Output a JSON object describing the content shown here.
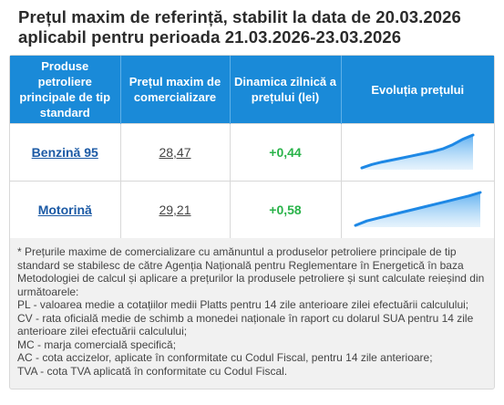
{
  "title_line1": "Prețul maxim de referință, stabilit la data de 20.03.2026",
  "title_line2": "aplicabil pentru perioada 21.03.2026-23.03.2026",
  "table": {
    "headers": [
      "Produse petroliere principale de tip standard",
      "Prețul maxim de comercializare",
      "Dinamica zilnică a prețului (lei)",
      "Evoluția prețului"
    ],
    "rows": [
      {
        "product": "Benzină 95",
        "price": "28,47",
        "delta": "+0,44",
        "trend": [
          0.05,
          0.15,
          0.22,
          0.28,
          0.34,
          0.4,
          0.46,
          0.52,
          0.6,
          0.72,
          0.88,
          1.0
        ]
      },
      {
        "product": "Motorină",
        "price": "29,21",
        "delta": "+0,58",
        "trend": [
          0.05,
          0.18,
          0.26,
          0.34,
          0.42,
          0.5,
          0.58,
          0.66,
          0.74,
          0.82,
          0.9,
          1.0
        ]
      }
    ]
  },
  "colors": {
    "header": "#1a8ad8",
    "accent": "#1c5aa5",
    "positive": "#2ab34a",
    "trend_line": "#1e88e5"
  },
  "notes": [
    "* Prețurile maxime de comercializare cu amănuntul a produselor petroliere principale de tip standard se stabilesc de către Agenția Națională pentru Reglementare în Energetică în baza Metodologiei de calcul și aplicare a prețurilor la produsele petroliere și sunt calculate reieșind din următoarele:",
    "PL - valoarea medie a cotațiilor medii Platts pentru 14 zile anterioare zilei efectuării calculului;",
    "CV - rata oficială medie de schimb a monedei naționale în raport cu dolarul SUA pentru 14 zile anterioare zilei efectuării calculului;",
    "MC - marja comercială specifică;",
    "AC - cota accizelor, aplicate în conformitate cu Codul Fiscal, pentru 14 zile anterioare;",
    "TVA - cota TVA aplicată în conformitate cu Codul Fiscal."
  ]
}
